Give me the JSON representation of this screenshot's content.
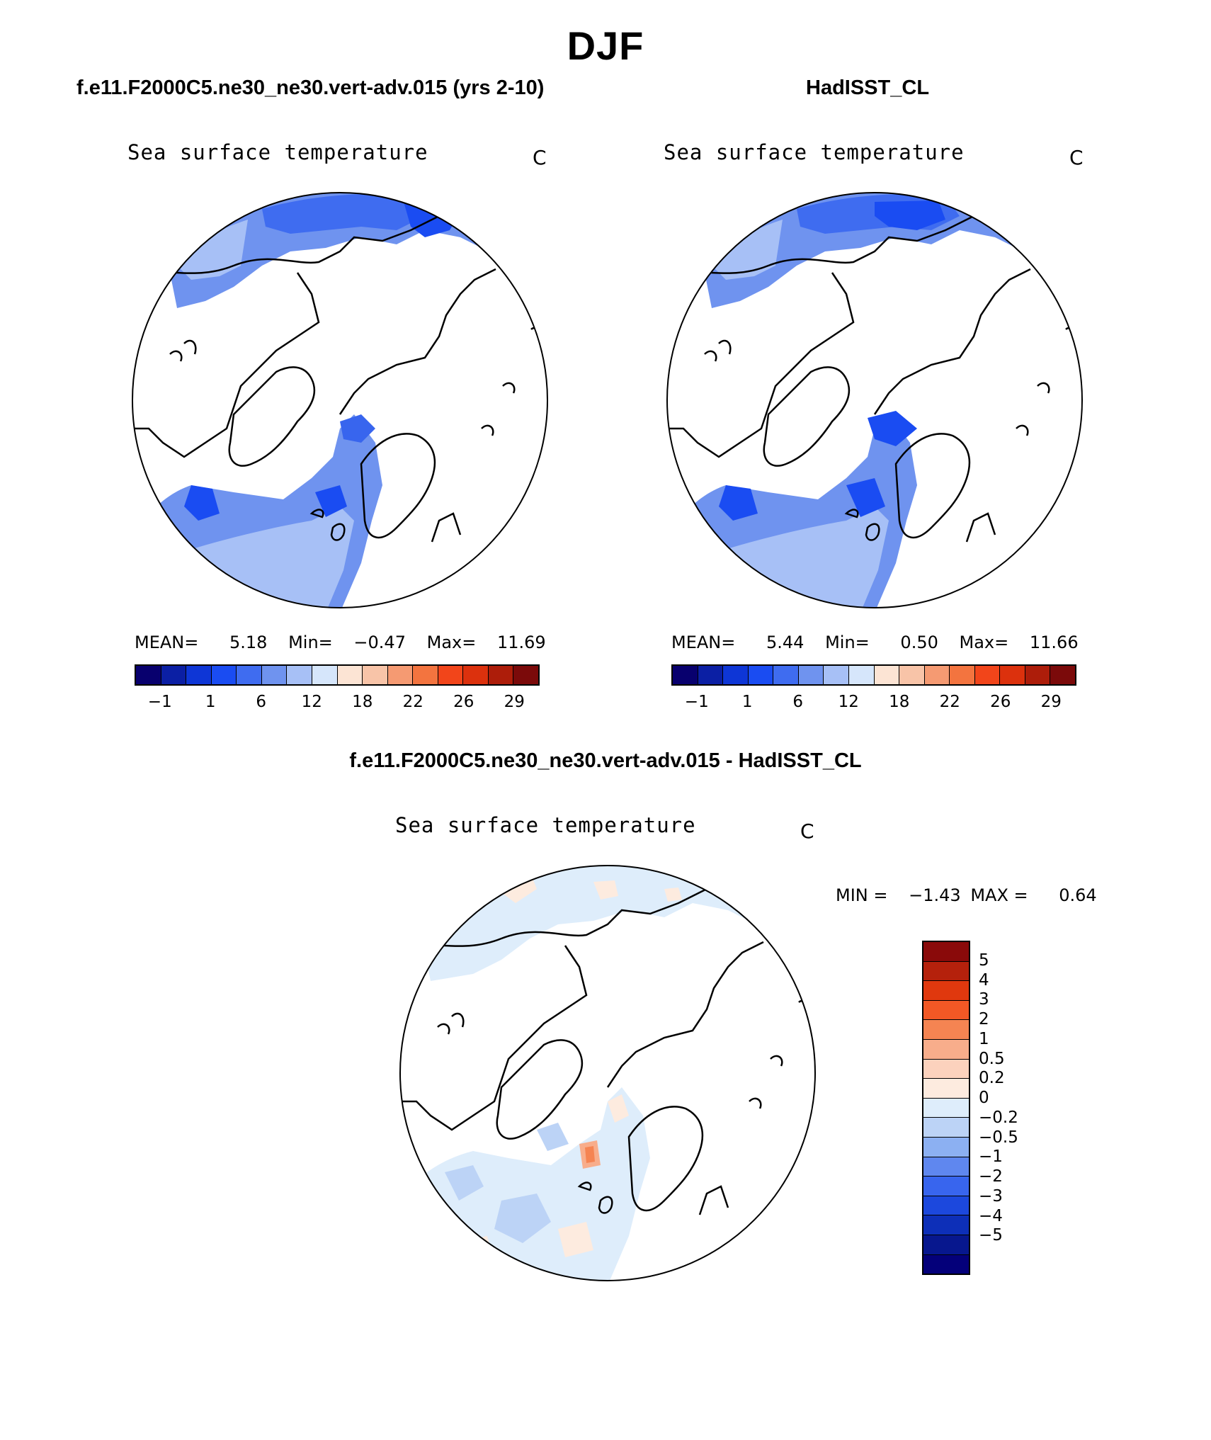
{
  "title": "DJF",
  "panels": [
    {
      "case_title": "f.e11.F2000C5.ne30_ne30.vert-adv.015 (yrs 2-10)",
      "variable": "Sea surface temperature",
      "units": "C",
      "stats": {
        "mean_label": "MEAN=",
        "mean": "5.18",
        "min_label": "Min=",
        "min": "−0.47",
        "max_label": "Max=",
        "max": "11.69"
      }
    },
    {
      "case_title": "HadISST_CL",
      "variable": "Sea surface temperature",
      "units": "C",
      "stats": {
        "mean_label": "MEAN=",
        "mean": "5.44",
        "min_label": "Min=",
        "min": "0.50",
        "max_label": "Max=",
        "max": "11.66"
      }
    },
    {
      "case_title": "f.e11.F2000C5.ne30_ne30.vert-adv.015 - HadISST_CL",
      "variable": "Sea surface temperature",
      "units": "C",
      "stats": {
        "min_label": "MIN =",
        "min": "−1.43",
        "max_label": "MAX =",
        "max": "0.64"
      }
    }
  ],
  "colorbars": {
    "abs": {
      "colors": [
        "#08006e",
        "#0b1fa4",
        "#0e36d6",
        "#1a4cf2",
        "#3f6cf0",
        "#6f93ef",
        "#a7c0f6",
        "#d6e6fb",
        "#fce4d4",
        "#f8c4a8",
        "#f59a72",
        "#f3743f",
        "#f2451a",
        "#dc310d",
        "#ad1d0a",
        "#7b0a0a"
      ],
      "ticks": [
        "−1",
        "1",
        "6",
        "12",
        "18",
        "22",
        "26",
        "29"
      ]
    },
    "diff": {
      "colors": [
        "#8a0a0a",
        "#b5210c",
        "#e0380e",
        "#f25825",
        "#f58452",
        "#f8ad8b",
        "#fcd2bd",
        "#fdebdf",
        "#deedfb",
        "#bcd3f6",
        "#8cb0f2",
        "#5f87ef",
        "#3865ee",
        "#1c48dd",
        "#0d2fb8",
        "#07178e",
        "#04007a"
      ],
      "ticks": [
        "5",
        "4",
        "3",
        "2",
        "1",
        "0.5",
        "0.2",
        "0",
        "−0.2",
        "−0.5",
        "−1",
        "−2",
        "−3",
        "−4",
        "−5"
      ]
    }
  }
}
